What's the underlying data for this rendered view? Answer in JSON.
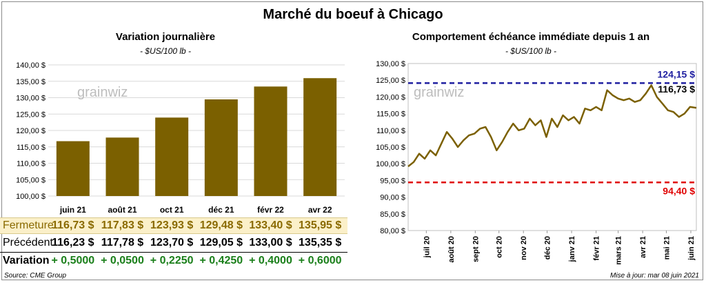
{
  "title": "Marché du boeuf à Chicago",
  "footer": {
    "source": "Source: CME Group",
    "updated": "Mise à jour: mar 08 juin 2021"
  },
  "watermark": "grainwiz",
  "table": {
    "headers": {
      "close": "Fermeture",
      "prev": "Précédent",
      "var": "Variation"
    },
    "close": [
      "116,73  $",
      "117,83  $",
      "123,93  $",
      "129,48  $",
      "133,40  $",
      "135,95  $"
    ],
    "prev": [
      "116,23  $",
      "117,78  $",
      "123,70  $",
      "129,05  $",
      "133,00  $",
      "135,35  $"
    ],
    "var": [
      "+ 0,5000",
      "+ 0,0500",
      "+ 0,2250",
      "+ 0,4250",
      "+ 0,4000",
      "+ 0,6000"
    ]
  },
  "colors": {
    "bar": "#7b6000",
    "line": "#7b6000",
    "high": "#1f1fa0",
    "low": "#e00000",
    "var": "#1a7f1a"
  },
  "chart_data": [
    {
      "type": "bar",
      "title": "Variation journalière",
      "subtitle": "- $US/100 lb -",
      "categories": [
        "juin 21",
        "août 21",
        "oct 21",
        "déc 21",
        "févr 22",
        "avr 22"
      ],
      "values": [
        116.73,
        117.83,
        123.93,
        129.48,
        133.4,
        135.95
      ],
      "ylim": [
        100,
        140
      ],
      "yticks": [
        "100,00 $",
        "105,00 $",
        "110,00 $",
        "115,00 $",
        "120,00 $",
        "125,00 $",
        "130,00 $",
        "135,00 $",
        "140,00 $"
      ],
      "grid": true
    },
    {
      "type": "line",
      "title": "Comportement  échéance immédiate depuis 1 an",
      "subtitle": "- $US/100 lb -",
      "ylim": [
        80,
        130
      ],
      "yticks": [
        "80,00 $",
        "85,00 $",
        "90,00 $",
        "95,00 $",
        "100,00 $",
        "105,00 $",
        "110,00 $",
        "115,00 $",
        "120,00 $",
        "125,00 $",
        "130,00 $"
      ],
      "xticks": [
        "juil 20",
        "août 20",
        "sept 20",
        "oct 20",
        "nov 20",
        "déc 20",
        "janv 21",
        "févr 21",
        "mars 21",
        "avr 21",
        "mai 21",
        "juin 21"
      ],
      "x": [
        "2020-06-08",
        "2020-06-15",
        "2020-06-22",
        "2020-06-29",
        "2020-07-06",
        "2020-07-13",
        "2020-07-20",
        "2020-07-27",
        "2020-08-03",
        "2020-08-10",
        "2020-08-17",
        "2020-08-24",
        "2020-08-31",
        "2020-09-07",
        "2020-09-14",
        "2020-09-21",
        "2020-09-28",
        "2020-10-05",
        "2020-10-12",
        "2020-10-19",
        "2020-10-26",
        "2020-11-02",
        "2020-11-09",
        "2020-11-16",
        "2020-11-23",
        "2020-11-30",
        "2020-12-07",
        "2020-12-14",
        "2020-12-21",
        "2020-12-28",
        "2021-01-04",
        "2021-01-11",
        "2021-01-18",
        "2021-01-25",
        "2021-02-01",
        "2021-02-08",
        "2021-02-15",
        "2021-02-22",
        "2021-03-01",
        "2021-03-08",
        "2021-03-15",
        "2021-03-22",
        "2021-03-29",
        "2021-04-05",
        "2021-04-12",
        "2021-04-19",
        "2021-04-26",
        "2021-05-03",
        "2021-05-10",
        "2021-05-17",
        "2021-05-24",
        "2021-05-31",
        "2021-06-08"
      ],
      "values": [
        99.2,
        100.5,
        103.0,
        101.5,
        104.0,
        102.5,
        106.0,
        109.5,
        107.5,
        105.0,
        107.0,
        108.5,
        109.0,
        110.5,
        111.0,
        108.0,
        104.0,
        106.5,
        109.5,
        112.0,
        110.0,
        110.5,
        113.5,
        111.5,
        113.0,
        108.0,
        113.5,
        111.0,
        114.5,
        113.0,
        114.0,
        112.0,
        116.5,
        116.0,
        117.0,
        116.0,
        122.0,
        120.5,
        119.5,
        119.0,
        119.5,
        118.5,
        119.0,
        121.0,
        123.5,
        120.0,
        118.0,
        116.0,
        115.5,
        114.0,
        115.0,
        117.0,
        116.73
      ],
      "hlines": [
        {
          "value": 124.15,
          "label": "124,15 $",
          "color": "#1f1fa0"
        },
        {
          "value": 94.4,
          "label": "94,40 $",
          "color": "#e00000"
        }
      ],
      "last_label": "116,73 $",
      "grid": false
    }
  ]
}
